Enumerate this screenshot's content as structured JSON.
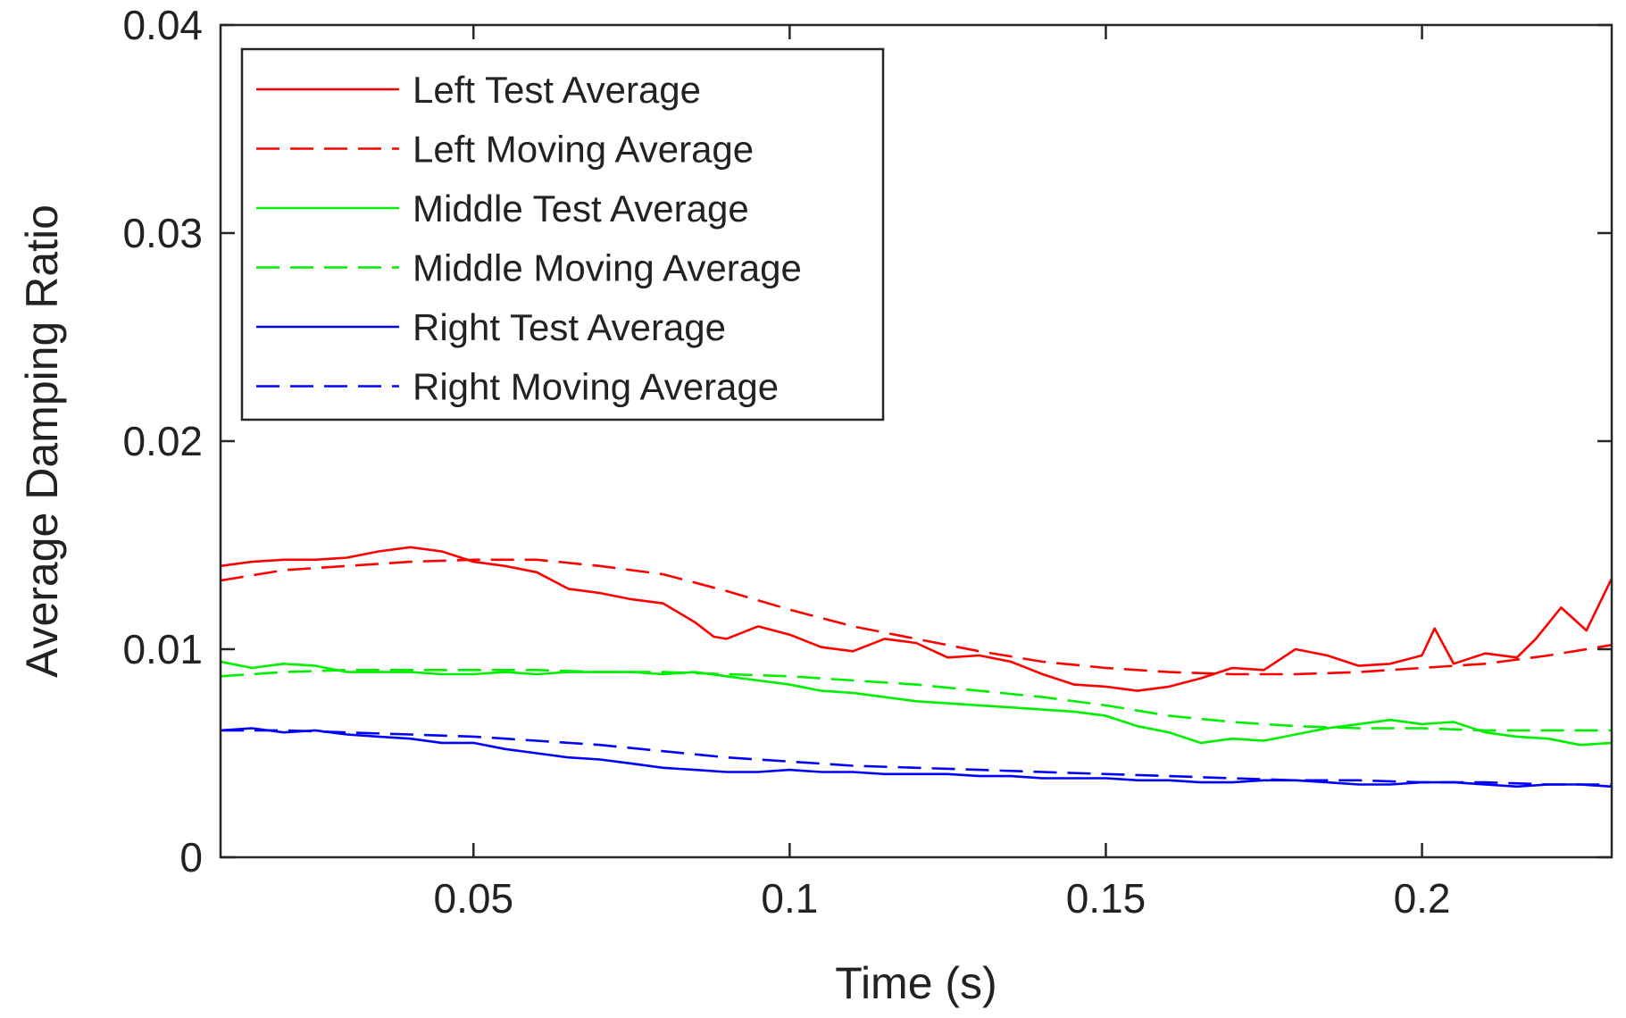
{
  "chart_data": {
    "type": "line",
    "title": "",
    "xlabel": "Time (s)",
    "ylabel": "Average Damping Ratio",
    "xlim": [
      0.01,
      0.23
    ],
    "ylim": [
      0,
      0.04
    ],
    "xticks": [
      0.05,
      0.1,
      0.15,
      0.2
    ],
    "xtick_labels": [
      "0.05",
      "0.1",
      "0.15",
      "0.2"
    ],
    "yticks": [
      0,
      0.01,
      0.02,
      0.03,
      0.04
    ],
    "ytick_labels": [
      "0",
      "0.01",
      "0.02",
      "0.03",
      "0.04"
    ],
    "grid": false,
    "legend_position": "top-left",
    "series": [
      {
        "name": "Left Test Average",
        "color": "#ff0000",
        "dash": "solid",
        "x": [
          0.01,
          0.015,
          0.02,
          0.025,
          0.03,
          0.035,
          0.04,
          0.045,
          0.05,
          0.055,
          0.06,
          0.065,
          0.07,
          0.075,
          0.08,
          0.085,
          0.088,
          0.09,
          0.095,
          0.1,
          0.105,
          0.11,
          0.115,
          0.12,
          0.125,
          0.13,
          0.135,
          0.14,
          0.145,
          0.15,
          0.155,
          0.16,
          0.165,
          0.17,
          0.175,
          0.18,
          0.185,
          0.19,
          0.195,
          0.2,
          0.202,
          0.205,
          0.21,
          0.215,
          0.218,
          0.222,
          0.226,
          0.23
        ],
        "y": [
          0.014,
          0.0142,
          0.0143,
          0.0143,
          0.0144,
          0.0147,
          0.0149,
          0.0147,
          0.0142,
          0.014,
          0.0137,
          0.0129,
          0.0127,
          0.0124,
          0.0122,
          0.0113,
          0.0106,
          0.0105,
          0.0111,
          0.0107,
          0.0101,
          0.0099,
          0.0105,
          0.0103,
          0.0096,
          0.0097,
          0.0094,
          0.0088,
          0.0083,
          0.0082,
          0.008,
          0.0082,
          0.0086,
          0.0091,
          0.009,
          0.01,
          0.0097,
          0.0092,
          0.0093,
          0.0097,
          0.011,
          0.0093,
          0.0098,
          0.0096,
          0.0105,
          0.012,
          0.0109,
          0.0134
        ]
      },
      {
        "name": "Left Moving Average",
        "color": "#ff0000",
        "dash": "dashed",
        "x": [
          0.01,
          0.02,
          0.03,
          0.04,
          0.05,
          0.06,
          0.07,
          0.08,
          0.09,
          0.1,
          0.11,
          0.12,
          0.13,
          0.14,
          0.15,
          0.16,
          0.17,
          0.18,
          0.19,
          0.2,
          0.21,
          0.22,
          0.23
        ],
        "y": [
          0.0133,
          0.0138,
          0.014,
          0.0142,
          0.0143,
          0.0143,
          0.014,
          0.0136,
          0.0128,
          0.0119,
          0.0111,
          0.0105,
          0.0099,
          0.0094,
          0.0091,
          0.0089,
          0.0088,
          0.0088,
          0.0089,
          0.0091,
          0.0093,
          0.0097,
          0.0102
        ]
      },
      {
        "name": "Middle Test Average",
        "color": "#00ee00",
        "dash": "solid",
        "x": [
          0.01,
          0.015,
          0.02,
          0.025,
          0.03,
          0.035,
          0.04,
          0.045,
          0.05,
          0.055,
          0.06,
          0.065,
          0.07,
          0.075,
          0.08,
          0.085,
          0.09,
          0.095,
          0.1,
          0.105,
          0.11,
          0.115,
          0.12,
          0.125,
          0.13,
          0.135,
          0.14,
          0.145,
          0.15,
          0.155,
          0.16,
          0.165,
          0.17,
          0.175,
          0.18,
          0.185,
          0.19,
          0.195,
          0.2,
          0.205,
          0.21,
          0.215,
          0.22,
          0.225,
          0.23
        ],
        "y": [
          0.0094,
          0.0091,
          0.0093,
          0.0092,
          0.0089,
          0.0089,
          0.0089,
          0.0088,
          0.0088,
          0.0089,
          0.0088,
          0.0089,
          0.0089,
          0.0089,
          0.0088,
          0.0089,
          0.0087,
          0.0085,
          0.0083,
          0.008,
          0.0079,
          0.0077,
          0.0075,
          0.0074,
          0.0073,
          0.0072,
          0.0071,
          0.007,
          0.0068,
          0.0063,
          0.006,
          0.0055,
          0.0057,
          0.0056,
          0.0059,
          0.0062,
          0.0064,
          0.0066,
          0.0064,
          0.0065,
          0.006,
          0.0058,
          0.0057,
          0.0054,
          0.0055
        ]
      },
      {
        "name": "Middle Moving Average",
        "color": "#00ee00",
        "dash": "dashed",
        "x": [
          0.01,
          0.02,
          0.03,
          0.04,
          0.05,
          0.06,
          0.07,
          0.08,
          0.09,
          0.1,
          0.11,
          0.12,
          0.13,
          0.14,
          0.15,
          0.16,
          0.17,
          0.18,
          0.19,
          0.2,
          0.21,
          0.22,
          0.23
        ],
        "y": [
          0.0087,
          0.0089,
          0.009,
          0.009,
          0.009,
          0.009,
          0.0089,
          0.0089,
          0.0088,
          0.0087,
          0.0085,
          0.0083,
          0.008,
          0.0077,
          0.0073,
          0.0068,
          0.0065,
          0.0063,
          0.0062,
          0.0062,
          0.0061,
          0.0061,
          0.0061
        ]
      },
      {
        "name": "Right Test Average",
        "color": "#0000ff",
        "dash": "solid",
        "x": [
          0.01,
          0.015,
          0.02,
          0.025,
          0.03,
          0.035,
          0.04,
          0.045,
          0.05,
          0.055,
          0.06,
          0.065,
          0.07,
          0.075,
          0.08,
          0.085,
          0.09,
          0.095,
          0.1,
          0.105,
          0.11,
          0.115,
          0.12,
          0.125,
          0.13,
          0.135,
          0.14,
          0.145,
          0.15,
          0.155,
          0.16,
          0.165,
          0.17,
          0.175,
          0.18,
          0.185,
          0.19,
          0.195,
          0.2,
          0.205,
          0.21,
          0.215,
          0.22,
          0.225,
          0.23
        ],
        "y": [
          0.0061,
          0.0062,
          0.006,
          0.0061,
          0.0059,
          0.0058,
          0.0057,
          0.0055,
          0.0055,
          0.0052,
          0.005,
          0.0048,
          0.0047,
          0.0045,
          0.0043,
          0.0042,
          0.0041,
          0.0041,
          0.0042,
          0.0041,
          0.0041,
          0.004,
          0.004,
          0.004,
          0.0039,
          0.0039,
          0.0038,
          0.0038,
          0.0038,
          0.0037,
          0.0037,
          0.0036,
          0.0036,
          0.0037,
          0.0037,
          0.0036,
          0.0035,
          0.0035,
          0.0036,
          0.0036,
          0.0035,
          0.0034,
          0.0035,
          0.0035,
          0.0034
        ]
      },
      {
        "name": "Right Moving Average",
        "color": "#0000ff",
        "dash": "dashed",
        "x": [
          0.01,
          0.02,
          0.03,
          0.04,
          0.05,
          0.06,
          0.07,
          0.08,
          0.09,
          0.1,
          0.11,
          0.12,
          0.13,
          0.14,
          0.15,
          0.16,
          0.17,
          0.18,
          0.19,
          0.2,
          0.21,
          0.22,
          0.23
        ],
        "y": [
          0.0061,
          0.0061,
          0.006,
          0.0059,
          0.0058,
          0.0056,
          0.0054,
          0.0051,
          0.0048,
          0.0046,
          0.0044,
          0.0043,
          0.0042,
          0.0041,
          0.004,
          0.0039,
          0.0038,
          0.0037,
          0.0037,
          0.0036,
          0.0036,
          0.0035,
          0.0035
        ]
      }
    ]
  }
}
